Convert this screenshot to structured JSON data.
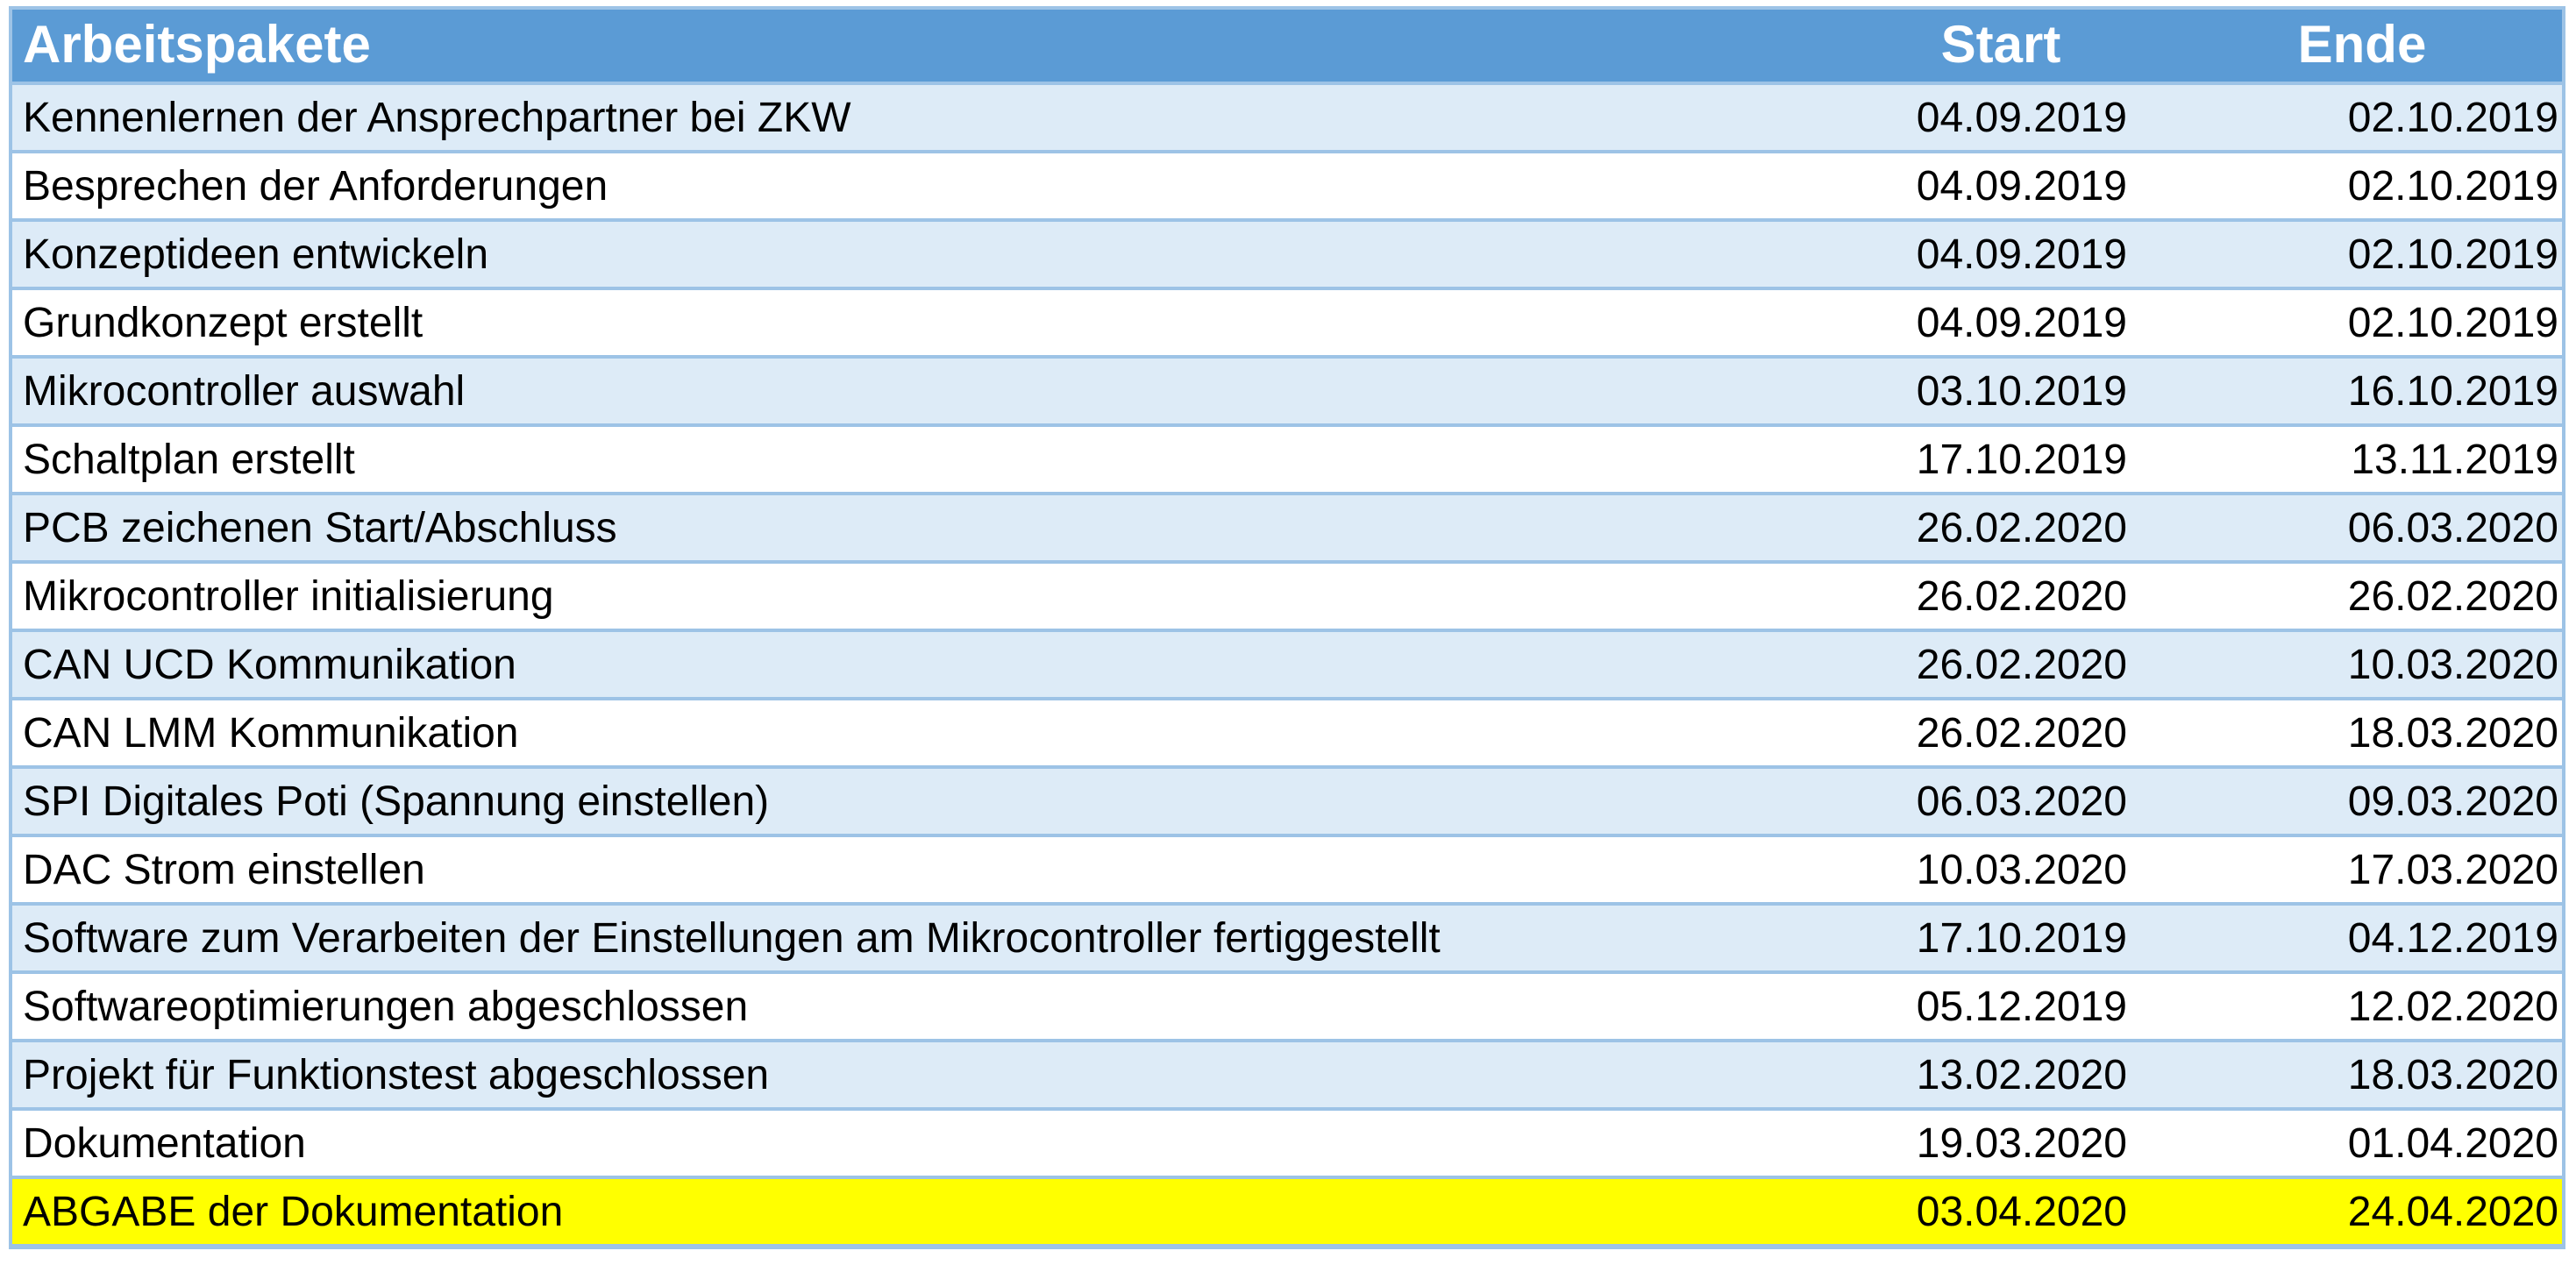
{
  "table": {
    "headers": {
      "task": "Arbeitspakete",
      "start": "Start",
      "end": "Ende"
    },
    "rows": [
      {
        "task": "Kennenlernen der Ansprechpartner bei ZKW",
        "start": "04.09.2019",
        "end": "02.10.2019"
      },
      {
        "task": "Besprechen der Anforderungen",
        "start": "04.09.2019",
        "end": "02.10.2019"
      },
      {
        "task": "Konzeptideen entwickeln",
        "start": "04.09.2019",
        "end": "02.10.2019"
      },
      {
        "task": "Grundkonzept erstellt",
        "start": "04.09.2019",
        "end": "02.10.2019"
      },
      {
        "task": "Mikrocontroller auswahl",
        "start": "03.10.2019",
        "end": "16.10.2019"
      },
      {
        "task": "Schaltplan erstellt",
        "start": "17.10.2019",
        "end": "13.11.2019"
      },
      {
        "task": "PCB zeichenen Start/Abschluss",
        "start": "26.02.2020",
        "end": "06.03.2020"
      },
      {
        "task": "Mikrocontroller initialisierung",
        "start": "26.02.2020",
        "end": "26.02.2020"
      },
      {
        "task": "CAN UCD Kommunikation",
        "start": "26.02.2020",
        "end": "10.03.2020"
      },
      {
        "task": "CAN LMM Kommunikation",
        "start": "26.02.2020",
        "end": "18.03.2020"
      },
      {
        "task": "SPI Digitales Poti (Spannung einstellen)",
        "start": "06.03.2020",
        "end": "09.03.2020"
      },
      {
        "task": "DAC Strom einstellen",
        "start": "10.03.2020",
        "end": "17.03.2020"
      },
      {
        "task": "Software zum Verarbeiten der Einstellungen am Mikrocontroller fertiggestellt",
        "start": "17.10.2019",
        "end": "04.12.2019"
      },
      {
        "task": "Softwareoptimierungen abgeschlossen",
        "start": "05.12.2019",
        "end": "12.02.2020"
      },
      {
        "task": "Projekt für Funktionstest abgeschlossen",
        "start": "13.02.2020",
        "end": "18.03.2020"
      },
      {
        "task": "Dokumentation",
        "start": "19.03.2020",
        "end": "01.04.2020"
      },
      {
        "task": "ABGABE der Dokumentation",
        "start": "03.04.2020",
        "end": "24.04.2020",
        "highlight": true
      }
    ]
  },
  "colors": {
    "header_bg": "#5b9bd5",
    "header_text": "#ffffff",
    "band_row": "#ddebf7",
    "plain_row": "#ffffff",
    "grid_line": "#9dc3e6",
    "highlight_row": "#ffff00"
  }
}
